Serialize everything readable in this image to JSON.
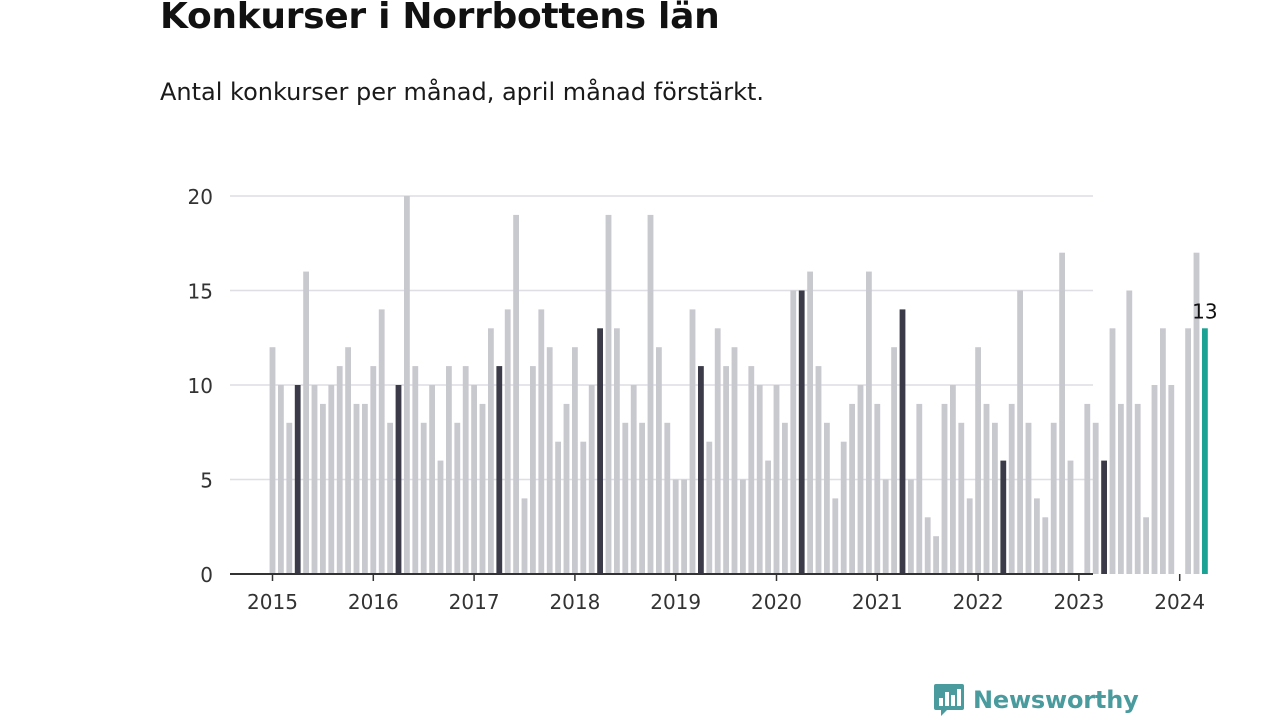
{
  "header": {
    "title": "Konkurser i Norrbottens län",
    "subtitle": "Antal konkurser per månad, april månad förstärkt."
  },
  "brand": {
    "name": "Newsworthy",
    "icon": "newsworthy-logo-icon",
    "color": "#4a9b9e"
  },
  "chart_data": {
    "type": "bar",
    "title": "Konkurser i Norrbottens län",
    "subtitle": "Antal konkurser per månad, april månad förstärkt.",
    "xlabel": "",
    "ylabel": "",
    "ylim": [
      0,
      20
    ],
    "yticks": [
      0,
      5,
      10,
      15,
      20
    ],
    "xticks": [
      "2015",
      "2016",
      "2017",
      "2018",
      "2019",
      "2020",
      "2021",
      "2022",
      "2023",
      "2024"
    ],
    "grid": true,
    "start": "2015-01",
    "colors": {
      "default": "#c8c8cf",
      "highlight": "#3a3a48",
      "latest": "#1aa394"
    },
    "highlight_month": "april",
    "latest_label": "13",
    "values": [
      12,
      10,
      8,
      10,
      16,
      10,
      9,
      10,
      11,
      12,
      9,
      9,
      11,
      14,
      8,
      10,
      20,
      11,
      8,
      10,
      6,
      11,
      8,
      11,
      10,
      9,
      13,
      11,
      14,
      19,
      4,
      11,
      14,
      12,
      7,
      9,
      12,
      7,
      10,
      13,
      19,
      13,
      8,
      10,
      8,
      19,
      12,
      8,
      5,
      5,
      14,
      11,
      7,
      13,
      11,
      12,
      5,
      11,
      10,
      6,
      10,
      8,
      15,
      15,
      16,
      11,
      8,
      4,
      7,
      9,
      10,
      16,
      9,
      5,
      12,
      14,
      5,
      9,
      3,
      2,
      9,
      10,
      8,
      4,
      12,
      9,
      8,
      6,
      9,
      15,
      8,
      4,
      3,
      8,
      17,
      6,
      0,
      9,
      8,
      6,
      13,
      9,
      15,
      9,
      3,
      10,
      13,
      10,
      0,
      13,
      17,
      13
    ]
  }
}
